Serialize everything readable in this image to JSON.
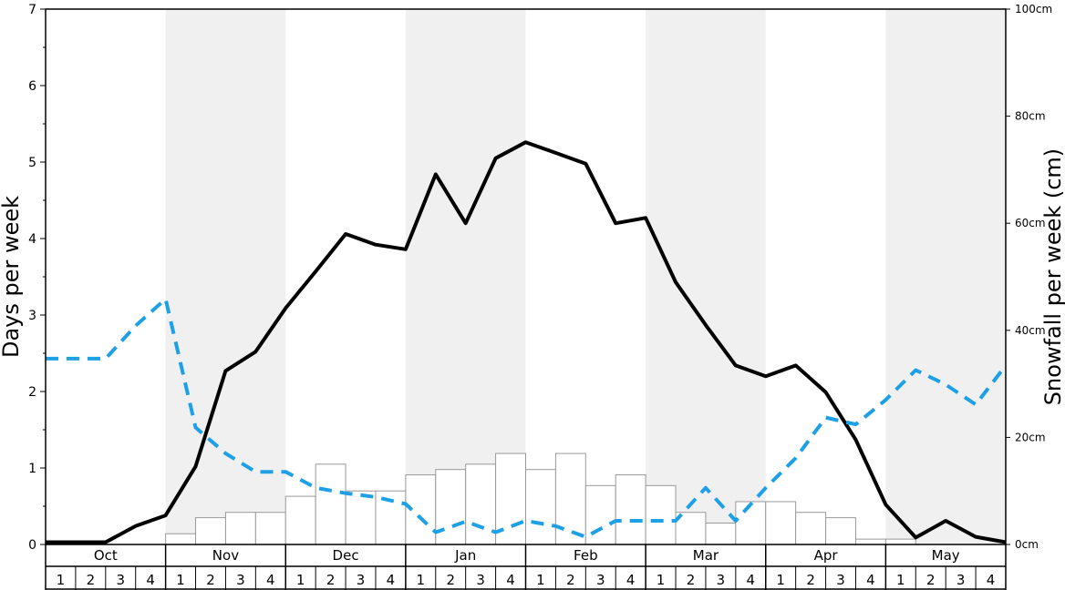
{
  "chart_data": {
    "type": "line",
    "ylabel_left": "Days per week",
    "ylabel_right": "Snowfall per week (cm)",
    "y_left_lim": [
      0,
      7
    ],
    "y_left_ticks": [
      "0",
      "1",
      "2",
      "3",
      "4",
      "5",
      "6",
      "7"
    ],
    "y_right_lim": [
      0,
      100
    ],
    "y_right_ticks": [
      "0cm",
      "20cm",
      "40cm",
      "60cm",
      "80cm",
      "100cm"
    ],
    "months": [
      "Oct",
      "Nov",
      "Dec",
      "Jan",
      "Feb",
      "Mar",
      "Apr",
      "May"
    ],
    "week_labels": [
      "1",
      "2",
      "3",
      "4"
    ],
    "colors": {
      "days_line": "#000000",
      "dashed_line": "#1ea0e6",
      "bars_fill": "#ffffff",
      "bars_stroke": "#999999",
      "band_shade": "#f0f0f0"
    },
    "series": [
      {
        "kind": "line",
        "axis": "left",
        "style": "solid",
        "values": [
          0.03,
          0.03,
          0.03,
          0.24,
          0.38,
          1.02,
          2.27,
          2.52,
          3.09,
          3.57,
          4.06,
          3.92,
          3.86,
          4.84,
          4.2,
          5.05,
          5.26,
          5.12,
          4.98,
          4.2,
          4.27,
          3.43,
          2.87,
          2.34,
          2.2,
          2.34,
          1.99,
          1.37,
          0.52,
          0.09,
          0.31,
          0.1,
          0.03
        ]
      },
      {
        "kind": "line",
        "axis": "left",
        "style": "dashed",
        "values": [
          2.43,
          2.43,
          2.43,
          2.86,
          3.21,
          1.53,
          1.19,
          0.95,
          0.95,
          0.74,
          0.67,
          0.62,
          0.53,
          0.16,
          0.3,
          0.16,
          0.31,
          0.24,
          0.1,
          0.31,
          0.31,
          0.31,
          0.74,
          0.31,
          0.74,
          1.13,
          1.66,
          1.57,
          1.89,
          2.28,
          2.09,
          1.83,
          2.34
        ]
      },
      {
        "kind": "bar",
        "axis": "right",
        "values": [
          0,
          0,
          0,
          0,
          2,
          5,
          6,
          6,
          9,
          15,
          10,
          10,
          13,
          14,
          15,
          17,
          14,
          17,
          11,
          13,
          11,
          6,
          4,
          8,
          8,
          6,
          5,
          1,
          1,
          0,
          0,
          0
        ]
      }
    ]
  }
}
